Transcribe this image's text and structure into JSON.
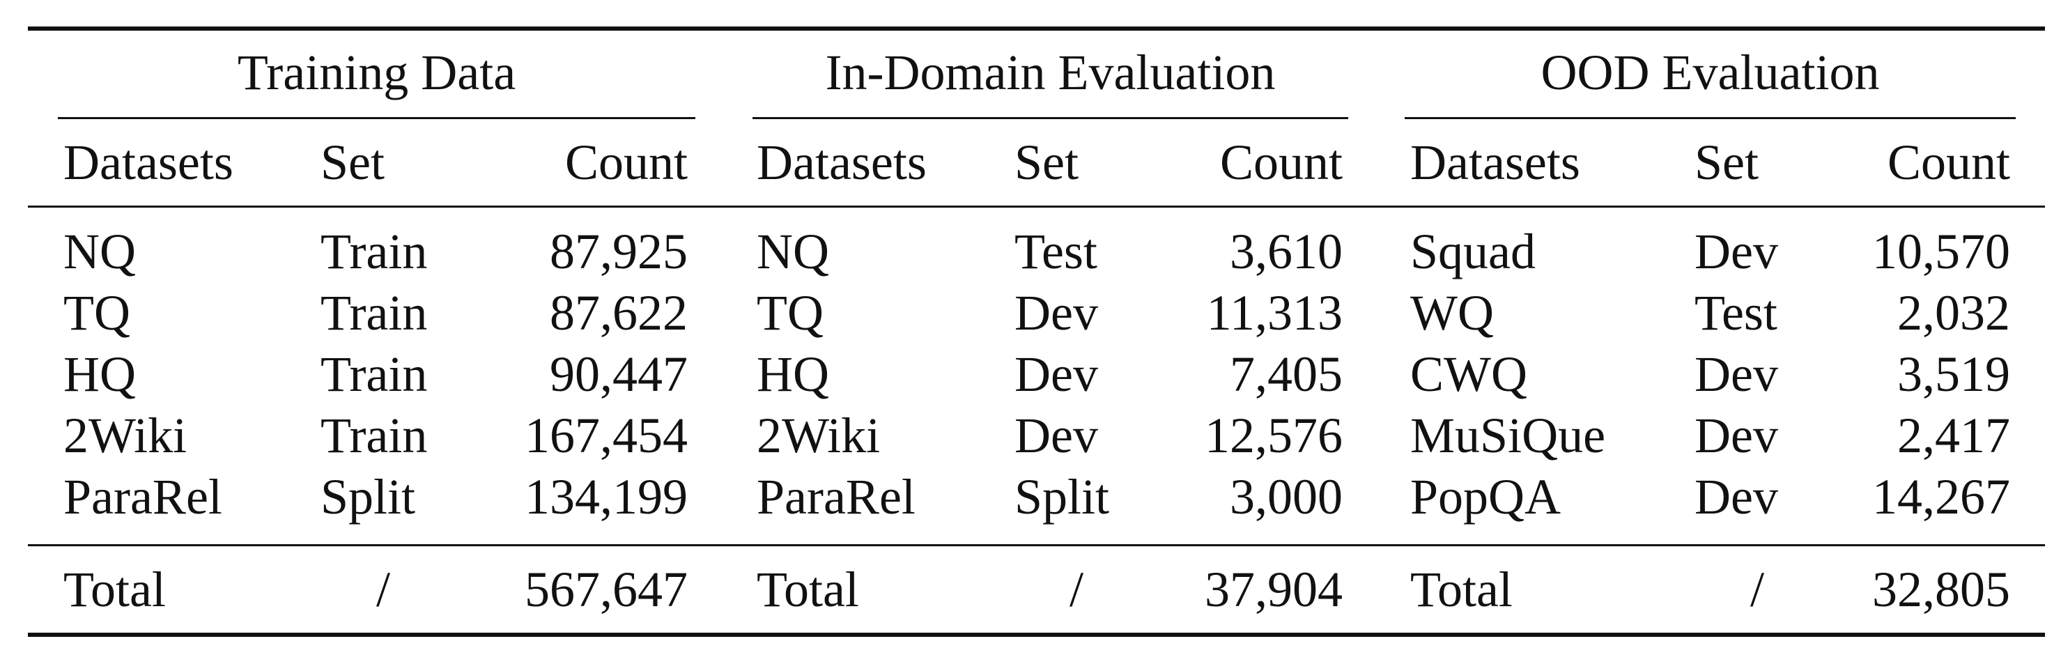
{
  "groups": [
    {
      "title": "Training Data",
      "headers": [
        "Datasets",
        "Set",
        "Count"
      ],
      "rows": [
        [
          "NQ",
          "Train",
          "87,925"
        ],
        [
          "TQ",
          "Train",
          "87,622"
        ],
        [
          "HQ",
          "Train",
          "90,447"
        ],
        [
          "2Wiki",
          "Train",
          "167,454"
        ],
        [
          "ParaRel",
          "Split",
          "134,199"
        ]
      ],
      "total": [
        "Total",
        "/",
        "567,647"
      ]
    },
    {
      "title": "In-Domain Evaluation",
      "headers": [
        "Datasets",
        "Set",
        "Count"
      ],
      "rows": [
        [
          "NQ",
          "Test",
          "3,610"
        ],
        [
          "TQ",
          "Dev",
          "11,313"
        ],
        [
          "HQ",
          "Dev",
          "7,405"
        ],
        [
          "2Wiki",
          "Dev",
          "12,576"
        ],
        [
          "ParaRel",
          "Split",
          "3,000"
        ]
      ],
      "total": [
        "Total",
        "/",
        "37,904"
      ]
    },
    {
      "title": "OOD Evaluation",
      "headers": [
        "Datasets",
        "Set",
        "Count"
      ],
      "rows": [
        [
          "Squad",
          "Dev",
          "10,570"
        ],
        [
          "WQ",
          "Test",
          "2,032"
        ],
        [
          "CWQ",
          "Dev",
          "3,519"
        ],
        [
          "MuSiQue",
          "Dev",
          "2,417"
        ],
        [
          "PopQA",
          "Dev",
          "14,267"
        ]
      ],
      "total": [
        "Total",
        "/",
        "32,805"
      ]
    }
  ]
}
